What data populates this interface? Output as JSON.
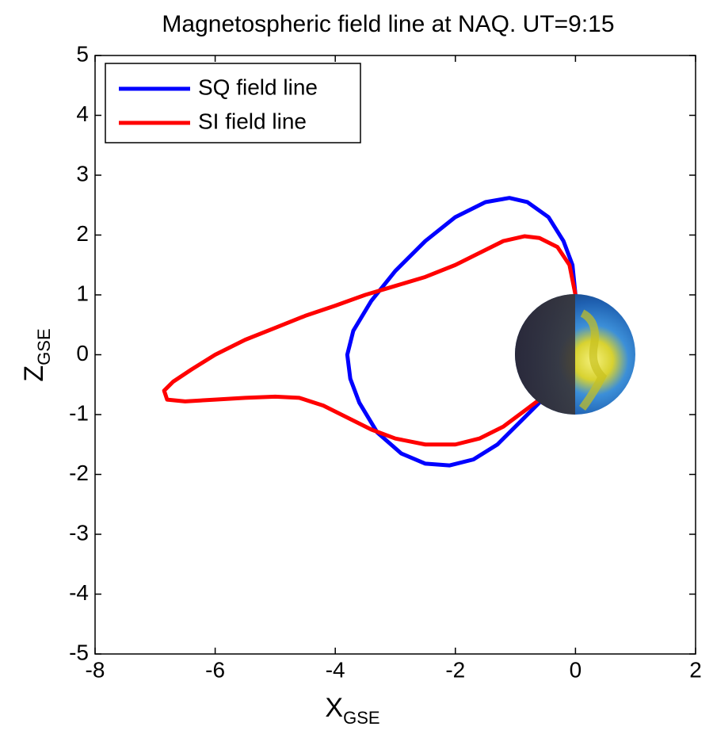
{
  "chart_data": {
    "type": "line",
    "title": "Magnetospheric field line at NAQ. UT=9:15",
    "xlabel": {
      "text": "X",
      "subscript": "GSE"
    },
    "ylabel": {
      "text": "Z",
      "subscript": "GSE"
    },
    "xlim": [
      -8,
      2
    ],
    "xticks": [
      -8,
      -6,
      -4,
      -2,
      0,
      2
    ],
    "ylim": [
      -5,
      5
    ],
    "yticks": [
      -5,
      -4,
      -3,
      -2,
      -1,
      0,
      1,
      2,
      3,
      4,
      5
    ],
    "grid": false,
    "legend": "upper left",
    "series": [
      {
        "name": "SQ field line",
        "color": "#0000ff",
        "x": [
          0,
          -0.05,
          -0.2,
          -0.45,
          -0.8,
          -1.1,
          -1.5,
          -2.0,
          -2.5,
          -3.0,
          -3.4,
          -3.7,
          -3.8,
          -3.75,
          -3.6,
          -3.3,
          -2.9,
          -2.5,
          -2.1,
          -1.7,
          -1.3,
          -0.9,
          -0.6
        ],
        "y": [
          1.0,
          1.5,
          1.9,
          2.3,
          2.55,
          2.62,
          2.55,
          2.3,
          1.9,
          1.4,
          0.9,
          0.4,
          0.0,
          -0.4,
          -0.8,
          -1.3,
          -1.65,
          -1.82,
          -1.85,
          -1.75,
          -1.5,
          -1.1,
          -0.8
        ]
      },
      {
        "name": "SI field line",
        "color": "#ff0000",
        "x": [
          0,
          -0.1,
          -0.3,
          -0.6,
          -0.85,
          -1.2,
          -1.6,
          -2.0,
          -2.5,
          -3.0,
          -3.5,
          -4.0,
          -4.5,
          -5.0,
          -5.5,
          -6.0,
          -6.4,
          -6.7,
          -6.85,
          -6.8,
          -6.5,
          -6.0,
          -5.5,
          -5.0,
          -4.6,
          -4.2,
          -3.8,
          -3.4,
          -3.0,
          -2.5,
          -2.0,
          -1.6,
          -1.2,
          -0.8,
          -0.6
        ],
        "y": [
          1.0,
          1.5,
          1.8,
          1.95,
          1.98,
          1.9,
          1.7,
          1.5,
          1.3,
          1.15,
          1.0,
          0.82,
          0.65,
          0.45,
          0.25,
          0.0,
          -0.25,
          -0.45,
          -0.6,
          -0.75,
          -0.78,
          -0.75,
          -0.72,
          -0.7,
          -0.72,
          -0.85,
          -1.05,
          -1.25,
          -1.4,
          -1.5,
          -1.5,
          -1.4,
          -1.2,
          -0.9,
          -0.75
        ]
      }
    ]
  }
}
